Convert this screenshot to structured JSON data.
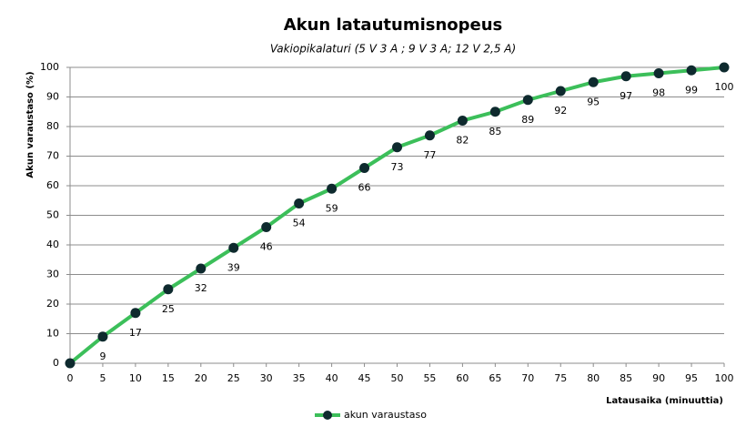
{
  "chart_data": {
    "type": "line",
    "title": "Akun latautumisnopeus",
    "subtitle": "Vakiopikalaturi  (5 V 3 A ; 9 V 3 A; 12 V 2,5 A)",
    "x_label": "Latausaika  (minuuttia)",
    "y_label": "Akun varaustaso  (%)",
    "x": [
      0,
      5,
      10,
      15,
      20,
      25,
      30,
      35,
      40,
      45,
      50,
      55,
      60,
      65,
      70,
      75,
      80,
      85,
      90,
      95,
      100
    ],
    "series": [
      {
        "name": "akun varaustaso",
        "color": "#3cbf5a",
        "marker_color": "#0e2a2e",
        "values": [
          0,
          9,
          17,
          25,
          32,
          39,
          46,
          54,
          59,
          66,
          73,
          77,
          82,
          85,
          89,
          92,
          95,
          97,
          98,
          99,
          100
        ]
      }
    ],
    "xlim": [
      0,
      100
    ],
    "xticks": [
      0,
      5,
      10,
      15,
      20,
      25,
      30,
      35,
      40,
      45,
      50,
      55,
      60,
      65,
      70,
      75,
      80,
      85,
      90,
      95,
      100
    ],
    "ylim": [
      0,
      100
    ],
    "yticks": [
      0,
      10,
      20,
      30,
      40,
      50,
      60,
      70,
      80,
      90,
      100
    ],
    "grid": true,
    "legend": "bottom"
  }
}
